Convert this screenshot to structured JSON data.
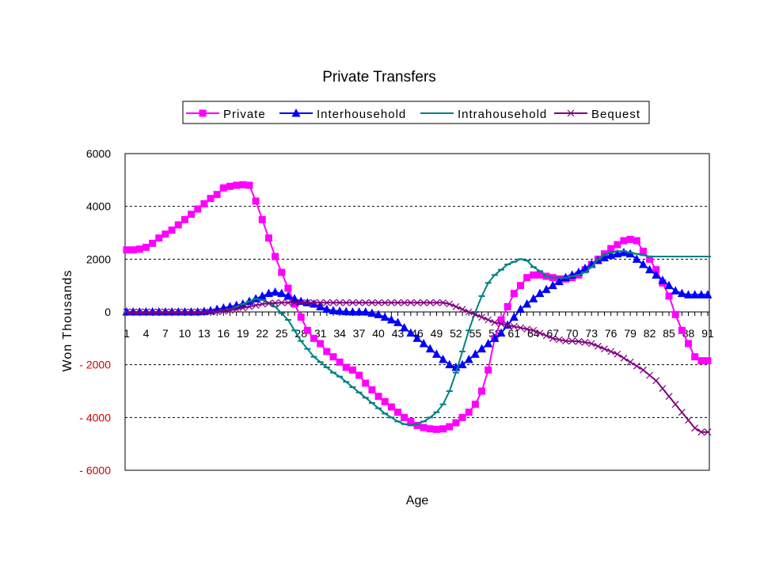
{
  "chart_data": {
    "type": "line",
    "title": "Private Transfers",
    "xlabel": "Age",
    "ylabel": "Won Thousands",
    "ylim": [
      -6000,
      6000
    ],
    "yticks": [
      6000,
      4000,
      2000,
      0,
      -2000,
      -4000,
      -6000
    ],
    "ytick_labels": [
      "6000",
      "4000",
      "2000",
      "0",
      "- 2000",
      "- 4000",
      "- 6000"
    ],
    "ytick_colors": [
      "#000000",
      "#000000",
      "#000000",
      "#000000",
      "#cc0000",
      "#cc0000",
      "#cc0000"
    ],
    "x": [
      1,
      2,
      3,
      4,
      5,
      6,
      7,
      8,
      9,
      10,
      11,
      12,
      13,
      14,
      15,
      16,
      17,
      18,
      19,
      20,
      21,
      22,
      23,
      24,
      25,
      26,
      27,
      28,
      29,
      30,
      31,
      32,
      33,
      34,
      35,
      36,
      37,
      38,
      39,
      40,
      41,
      42,
      43,
      44,
      45,
      46,
      47,
      48,
      49,
      50,
      51,
      52,
      53,
      54,
      55,
      56,
      57,
      58,
      59,
      60,
      61,
      62,
      63,
      64,
      65,
      66,
      67,
      68,
      69,
      70,
      71,
      72,
      73,
      74,
      75,
      76,
      77,
      78,
      79,
      80,
      81,
      82,
      83,
      84,
      85,
      86,
      87,
      88,
      89,
      90,
      91
    ],
    "xtick_labels": [
      "1",
      "4",
      "7",
      "10",
      "13",
      "16",
      "19",
      "22",
      "25",
      "28",
      "31",
      "34",
      "37",
      "40",
      "43",
      "46",
      "49",
      "52",
      "55",
      "58",
      "61",
      "64",
      "67",
      "70",
      "73",
      "76",
      "79",
      "82",
      "85",
      "88",
      "91"
    ],
    "grid": "horizontal-dashed",
    "legend": "top",
    "series": [
      {
        "name": "Private",
        "color": "#ff00ff",
        "marker": "square",
        "values": [
          2350,
          2350,
          2380,
          2450,
          2600,
          2800,
          2950,
          3100,
          3300,
          3500,
          3700,
          3900,
          4100,
          4300,
          4450,
          4700,
          4760,
          4800,
          4820,
          4800,
          4200,
          3500,
          2800,
          2100,
          1500,
          900,
          300,
          -200,
          -700,
          -1000,
          -1200,
          -1500,
          -1700,
          -1900,
          -2100,
          -2200,
          -2400,
          -2700,
          -2950,
          -3200,
          -3400,
          -3600,
          -3800,
          -4000,
          -4150,
          -4300,
          -4380,
          -4430,
          -4450,
          -4430,
          -4350,
          -4200,
          -4000,
          -3800,
          -3500,
          -3000,
          -2200,
          -1000,
          -300,
          200,
          700,
          1000,
          1300,
          1400,
          1400,
          1350,
          1300,
          1250,
          1250,
          1300,
          1400,
          1600,
          1800,
          2000,
          2200,
          2400,
          2550,
          2700,
          2750,
          2700,
          2300,
          2000,
          1600,
          1100,
          600,
          -100,
          -700,
          -1200,
          -1700,
          -1850,
          -1850
        ]
      },
      {
        "name": "Interhousehold",
        "color": "#0000ff",
        "marker": "triangle",
        "values": [
          0,
          0,
          0,
          0,
          0,
          0,
          0,
          0,
          0,
          0,
          0,
          0,
          20,
          50,
          100,
          150,
          200,
          250,
          300,
          400,
          500,
          600,
          700,
          750,
          700,
          600,
          500,
          400,
          350,
          300,
          200,
          100,
          50,
          30,
          10,
          0,
          0,
          0,
          -50,
          -100,
          -200,
          -300,
          -400,
          -600,
          -800,
          -1000,
          -1200,
          -1400,
          -1600,
          -1800,
          -2000,
          -2100,
          -2000,
          -1800,
          -1600,
          -1400,
          -1200,
          -1000,
          -800,
          -500,
          -200,
          100,
          300,
          500,
          700,
          850,
          1000,
          1150,
          1300,
          1400,
          1500,
          1650,
          1800,
          1950,
          2050,
          2150,
          2200,
          2250,
          2200,
          2000,
          1800,
          1600,
          1400,
          1200,
          1000,
          800,
          700,
          650,
          650,
          650,
          650
        ]
      },
      {
        "name": "Intrahousehold",
        "color": "#008080",
        "marker": "dash",
        "values": [
          0,
          0,
          0,
          0,
          0,
          0,
          0,
          0,
          0,
          0,
          0,
          0,
          0,
          0,
          0,
          50,
          100,
          200,
          300,
          400,
          500,
          450,
          350,
          200,
          -50,
          -300,
          -700,
          -1100,
          -1400,
          -1700,
          -1900,
          -2100,
          -2300,
          -2450,
          -2650,
          -2850,
          -3050,
          -3250,
          -3450,
          -3650,
          -3850,
          -4000,
          -4150,
          -4250,
          -4300,
          -4250,
          -4150,
          -4000,
          -3800,
          -3500,
          -3000,
          -2300,
          -1500,
          -700,
          0,
          600,
          1100,
          1400,
          1600,
          1800,
          1900,
          2000,
          1950,
          1700,
          1550,
          1350,
          1300,
          1300,
          1300,
          1350,
          1400,
          1500,
          1700,
          2000,
          2150,
          2250,
          2300,
          2300,
          2250,
          2200,
          2150,
          2100,
          2100,
          2100,
          2100,
          2100,
          2100,
          2100,
          2100,
          2100,
          2100
        ]
      },
      {
        "name": "Bequest",
        "color": "#800080",
        "marker": "x",
        "values": [
          0,
          0,
          0,
          0,
          0,
          0,
          0,
          0,
          0,
          0,
          0,
          0,
          0,
          0,
          10,
          30,
          60,
          100,
          150,
          200,
          250,
          300,
          320,
          340,
          350,
          350,
          350,
          350,
          350,
          350,
          350,
          350,
          350,
          350,
          350,
          350,
          350,
          350,
          350,
          350,
          350,
          350,
          350,
          350,
          350,
          350,
          350,
          350,
          350,
          350,
          300,
          200,
          100,
          0,
          -100,
          -200,
          -300,
          -400,
          -450,
          -500,
          -550,
          -600,
          -650,
          -700,
          -800,
          -900,
          -1000,
          -1050,
          -1100,
          -1100,
          -1120,
          -1150,
          -1200,
          -1300,
          -1400,
          -1500,
          -1600,
          -1750,
          -1900,
          -2050,
          -2200,
          -2400,
          -2600,
          -2900,
          -3200,
          -3500,
          -3800,
          -4100,
          -4400,
          -4550,
          -4550
        ]
      }
    ]
  }
}
